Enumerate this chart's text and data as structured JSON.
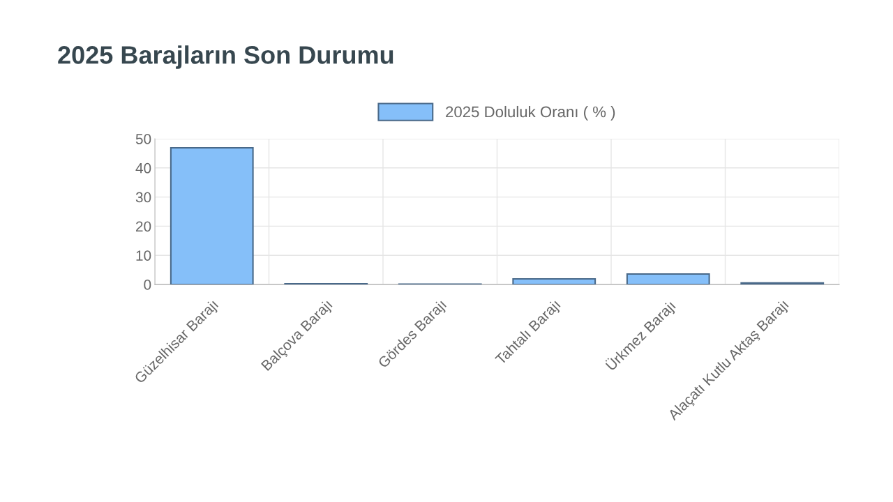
{
  "chart_data": {
    "type": "bar",
    "title": "2025 Barajların Son Durumu",
    "categories": [
      "Güzelhisar Barajı",
      "Balçova Barajı",
      "Gördes Barajı",
      "Tahtalı Barajı",
      "Ürkmez Barajı",
      "Alaçatı Kutlu Aktaş Barajı"
    ],
    "series": [
      {
        "name": "2025 Doluluk Oranı ( % )",
        "color": "#85bff9",
        "values": [
          46.9,
          0.2,
          0.1,
          1.9,
          3.6,
          0.5
        ]
      }
    ],
    "ylim": [
      0,
      50
    ],
    "yticks": [
      0,
      10,
      20,
      30,
      40,
      50
    ],
    "grid": true,
    "legend": "top"
  }
}
